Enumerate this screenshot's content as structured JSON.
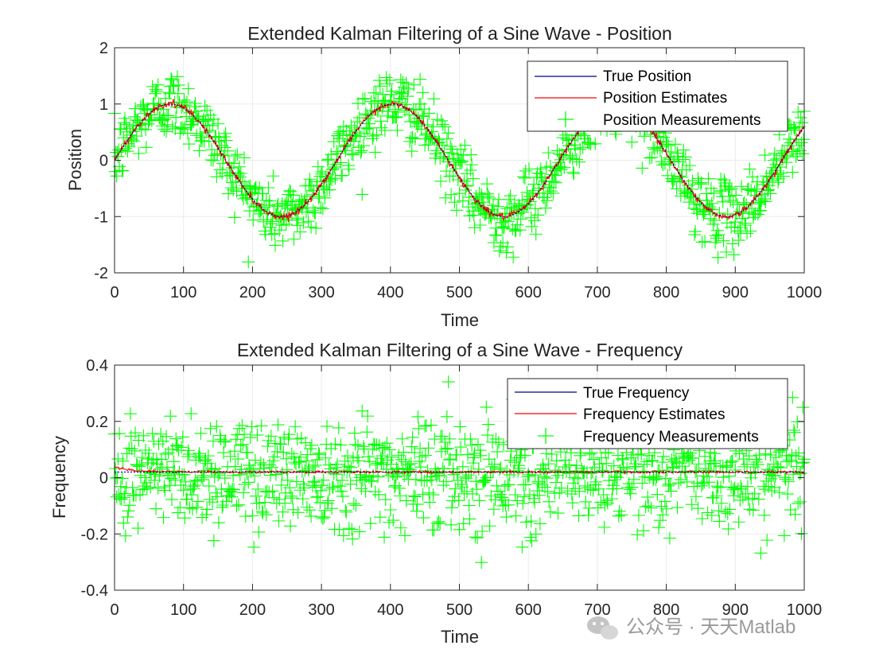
{
  "chart_data": [
    {
      "type": "line",
      "title": "Extended Kalman Filtering of a Sine Wave - Position",
      "xlabel": "Time",
      "ylabel": "Position",
      "xlim": [
        0,
        1000
      ],
      "ylim": [
        -2,
        2
      ],
      "xticks": [
        "0",
        "100",
        "200",
        "300",
        "400",
        "500",
        "600",
        "700",
        "800",
        "900",
        "1000"
      ],
      "yticks": [
        "-2",
        "-1",
        "0",
        "1",
        "2"
      ],
      "grid": true,
      "legend_position": "top-right",
      "series": [
        {
          "name": "True Position",
          "kind": "line",
          "color": "#00008b",
          "formula": "sin(2*pi*0.0031*t)",
          "x_range": [
            0,
            1000
          ]
        },
        {
          "name": "Position Estimates",
          "kind": "line",
          "color": "#ff0000",
          "formula": "sin(2*pi*0.0031*t) with filter noise",
          "x_range": [
            0,
            1000
          ]
        },
        {
          "name": "Position Measurements",
          "kind": "scatter",
          "marker": "+",
          "color": "#00ff00",
          "formula": "sin(2*pi*0.0031*t) + noise(sd≈0.3)",
          "x_range": [
            0,
            1000
          ]
        }
      ]
    },
    {
      "type": "line",
      "title": "Extended Kalman Filtering of a Sine Wave - Frequency",
      "xlabel": "Time",
      "ylabel": "Frequency",
      "xlim": [
        0,
        1000
      ],
      "ylim": [
        -0.4,
        0.4
      ],
      "xticks": [
        "0",
        "100",
        "200",
        "300",
        "400",
        "500",
        "600",
        "700",
        "800",
        "900",
        "1000"
      ],
      "yticks": [
        "-0.4",
        "-0.2",
        "0",
        "0.2",
        "0.4"
      ],
      "grid": true,
      "legend_position": "top-right",
      "series": [
        {
          "name": "True Frequency",
          "kind": "line",
          "color": "#00008b",
          "constant": 0.02,
          "x_range": [
            0,
            1000
          ]
        },
        {
          "name": "Frequency Estimates",
          "kind": "line",
          "color": "#ff0000",
          "formula": "converges to 0.02 from ~0.04",
          "x_range": [
            0,
            1000
          ]
        },
        {
          "name": "Frequency Measurements",
          "kind": "scatter",
          "marker": "+",
          "color": "#00ff00",
          "formula": "0.02 + noise(sd≈0.1)",
          "x_range": [
            0,
            1000
          ]
        }
      ]
    }
  ],
  "watermark": {
    "text": "公众号 · 天天Matlab",
    "icon": "wechat-icon"
  }
}
